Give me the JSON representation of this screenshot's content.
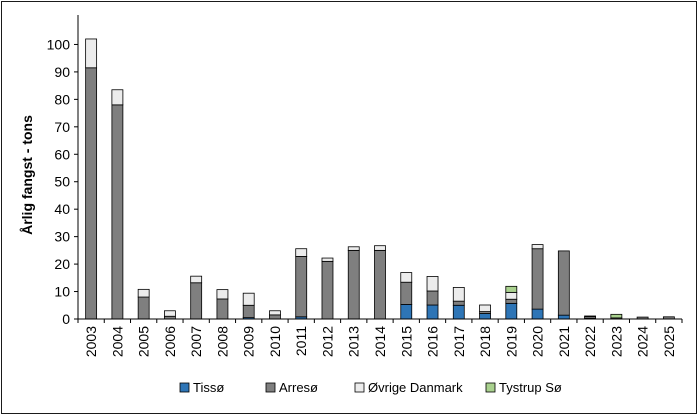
{
  "chart_data": {
    "type": "bar",
    "stacked": true,
    "title": "",
    "xlabel": "",
    "ylabel": "Årlig fangst - tons",
    "ylim": [
      0,
      110
    ],
    "yticks": [
      0,
      10,
      20,
      30,
      40,
      50,
      60,
      70,
      80,
      90,
      100
    ],
    "grid": false,
    "legend": "bottom",
    "categories": [
      "2003",
      "2004",
      "2005",
      "2006",
      "2007",
      "2008",
      "2009",
      "2010",
      "2011",
      "2012",
      "2013",
      "2014",
      "2015",
      "2016",
      "2017",
      "2018",
      "2019",
      "2020",
      "2021",
      "2022",
      "2023",
      "2024",
      "2025"
    ],
    "series": [
      {
        "name": "Tissø",
        "color": "#2e75b6",
        "values": [
          0,
          0,
          0,
          0,
          0,
          0,
          0.5,
          0,
          0.8,
          0,
          0,
          0,
          5.3,
          5.1,
          5,
          2,
          5.7,
          3.6,
          1.4,
          0,
          0,
          0,
          0
        ]
      },
      {
        "name": "Arresø",
        "color": "#7f7f7f",
        "values": [
          91.5,
          78,
          8,
          1,
          13.2,
          7.3,
          4.5,
          1.5,
          22,
          21,
          25,
          25,
          8.1,
          5.1,
          1.5,
          0.7,
          1.5,
          22,
          23.4,
          0.3,
          0,
          0.7,
          0.8
        ]
      },
      {
        "name": "Øvrige Danmark",
        "color": "#ececec",
        "values": [
          10.5,
          5.5,
          2.8,
          2,
          2.4,
          3.4,
          4.4,
          1.5,
          2.8,
          1.2,
          1.3,
          1.7,
          3.5,
          5.3,
          5,
          2.4,
          2.5,
          1.5,
          0,
          0.5,
          0.4,
          0,
          0
        ]
      },
      {
        "name": "Tystrup Sø",
        "color": "#a9d18e",
        "values": [
          0,
          0,
          0,
          0,
          0,
          0,
          0,
          0,
          0,
          0,
          0,
          0,
          0,
          0,
          0,
          0,
          2.2,
          0,
          0,
          0.3,
          1.3,
          0,
          0
        ]
      }
    ]
  }
}
